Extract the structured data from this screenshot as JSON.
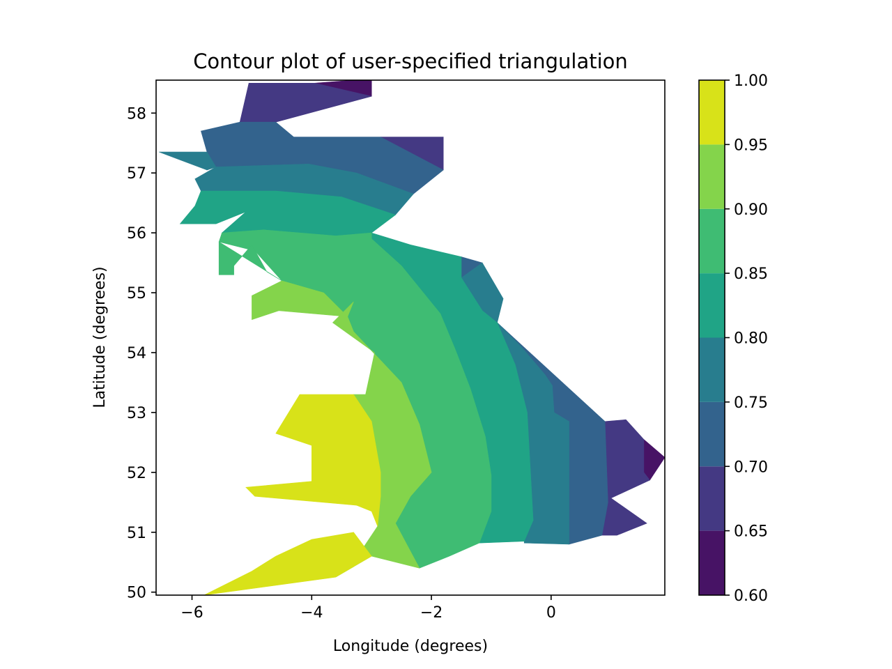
{
  "chart_data": {
    "type": "tricontourf",
    "title": "Contour plot of user-specified triangulation",
    "xlabel": "Longitude (degrees)",
    "ylabel": "Latitude (degrees)",
    "xlim": [
      -6.6,
      1.9
    ],
    "ylim": [
      49.95,
      58.55
    ],
    "x_ticks": [
      -6,
      -4,
      -2,
      0
    ],
    "x_tick_labels": [
      "−6",
      "−4",
      "−2",
      "0"
    ],
    "y_ticks": [
      50,
      51,
      52,
      53,
      54,
      55,
      56,
      57,
      58
    ],
    "y_tick_labels": [
      "50",
      "51",
      "52",
      "53",
      "54",
      "55",
      "56",
      "57",
      "58"
    ],
    "grid": false,
    "colorbar": {
      "levels": [
        0.6,
        0.65,
        0.7,
        0.75,
        0.8,
        0.85,
        0.9,
        0.95,
        1.0
      ],
      "tick_labels": [
        "0.60",
        "0.65",
        "0.70",
        "0.75",
        "0.80",
        "0.85",
        "0.90",
        "0.95",
        "1.00"
      ],
      "colors": [
        "#471365",
        "#443983",
        "#33638d",
        "#287d8e",
        "#20a486",
        "#3fbc73",
        "#84d44b",
        "#d8e219"
      ]
    },
    "bands": [
      {
        "level": [
          0.6,
          0.65
        ],
        "color": "#471365",
        "polygons": [
          [
            [
              -3.0,
              58.55
            ],
            [
              -3.0,
              58.28
            ],
            [
              -3.95,
              58.5
            ],
            [
              -3.3,
              58.55
            ]
          ],
          [
            [
              1.55,
              52.55
            ],
            [
              1.9,
              52.25
            ],
            [
              1.65,
              51.87
            ],
            [
              1.55,
              52.0
            ]
          ]
        ]
      },
      {
        "level": [
          0.65,
          0.7
        ],
        "color": "#443983",
        "polygons": [
          [
            [
              -5.05,
              58.5
            ],
            [
              -3.95,
              58.5
            ],
            [
              -3.0,
              58.28
            ],
            [
              -4.6,
              57.85
            ],
            [
              -5.05,
              57.85
            ],
            [
              -5.2,
              57.85
            ]
          ],
          [
            [
              -2.85,
              57.6
            ],
            [
              -1.8,
              57.6
            ],
            [
              -1.8,
              57.05
            ]
          ],
          [
            [
              0.9,
              52.85
            ],
            [
              1.25,
              52.88
            ],
            [
              1.55,
              52.55
            ],
            [
              1.55,
              52.0
            ],
            [
              1.65,
              51.87
            ],
            [
              1.0,
              51.57
            ],
            [
              1.6,
              51.15
            ],
            [
              1.1,
              50.95
            ],
            [
              0.85,
              50.95
            ],
            [
              0.95,
              51.5
            ]
          ]
        ]
      },
      {
        "level": [
          0.7,
          0.75
        ],
        "color": "#33638d",
        "polygons": [
          [
            [
              -5.85,
              57.7
            ],
            [
              -5.2,
              57.85
            ],
            [
              -4.6,
              57.85
            ],
            [
              -4.3,
              57.6
            ],
            [
              -2.85,
              57.6
            ],
            [
              -1.8,
              57.05
            ],
            [
              -2.3,
              56.65
            ],
            [
              -3.25,
              57.0
            ],
            [
              -4.05,
              57.15
            ],
            [
              -5.6,
              57.1
            ],
            [
              -5.75,
              57.05
            ],
            [
              -5.75,
              57.35
            ]
          ],
          [
            [
              -1.5,
              55.6
            ],
            [
              -1.15,
              55.5
            ],
            [
              -1.5,
              55.25
            ]
          ],
          [
            [
              -0.9,
              54.5
            ],
            [
              -0.5,
              54.1
            ],
            [
              -0.1,
              53.63
            ],
            [
              0.02,
              53.45
            ],
            [
              0.05,
              53.0
            ],
            [
              0.3,
              52.85
            ],
            [
              0.3,
              50.8
            ],
            [
              0.85,
              50.95
            ],
            [
              0.95,
              51.5
            ],
            [
              0.9,
              52.85
            ]
          ]
        ]
      },
      {
        "level": [
          0.75,
          0.8
        ],
        "color": "#287d8e",
        "polygons": [
          [
            [
              -6.55,
              57.35
            ],
            [
              -5.75,
              57.05
            ],
            [
              -5.6,
              57.1
            ],
            [
              -5.75,
              57.35
            ]
          ],
          [
            [
              -5.6,
              57.1
            ],
            [
              -4.05,
              57.15
            ],
            [
              -3.25,
              57.0
            ],
            [
              -2.3,
              56.65
            ],
            [
              -2.6,
              56.3
            ],
            [
              -2.9,
              56.4
            ],
            [
              -3.5,
              56.6
            ],
            [
              -4.6,
              56.7
            ],
            [
              -5.85,
              56.7
            ],
            [
              -5.95,
              56.9
            ]
          ],
          [
            [
              -1.5,
              55.25
            ],
            [
              -1.15,
              55.5
            ],
            [
              -0.8,
              54.9
            ],
            [
              -0.9,
              54.5
            ],
            [
              -1.15,
              54.7
            ]
          ],
          [
            [
              -0.5,
              54.1
            ],
            [
              -0.9,
              54.5
            ],
            [
              -0.6,
              53.8
            ],
            [
              -0.4,
              53.0
            ],
            [
              -0.3,
              51.2
            ],
            [
              -0.45,
              50.85
            ],
            [
              -0.45,
              50.82
            ],
            [
              0.3,
              50.8
            ],
            [
              0.3,
              52.85
            ],
            [
              0.05,
              53.0
            ],
            [
              0.02,
              53.45
            ],
            [
              -0.1,
              53.63
            ]
          ]
        ]
      },
      {
        "level": [
          0.8,
          0.85
        ],
        "color": "#20a486",
        "polygons": [
          [
            [
              -5.85,
              56.7
            ],
            [
              -4.6,
              56.7
            ],
            [
              -3.5,
              56.6
            ],
            [
              -2.9,
              56.4
            ],
            [
              -2.6,
              56.3
            ],
            [
              -3.0,
              56.0
            ],
            [
              -3.6,
              55.95
            ],
            [
              -4.8,
              56.05
            ],
            [
              -5.5,
              56.0
            ],
            [
              -5.1,
              56.35
            ],
            [
              -5.6,
              56.15
            ],
            [
              -6.2,
              56.15
            ],
            [
              -5.95,
              56.45
            ]
          ],
          [
            [
              -3.0,
              56.0
            ],
            [
              -2.35,
              55.8
            ],
            [
              -1.5,
              55.6
            ],
            [
              -1.5,
              55.25
            ],
            [
              -1.15,
              54.7
            ],
            [
              -0.9,
              54.5
            ],
            [
              -0.6,
              53.8
            ],
            [
              -0.4,
              53.0
            ],
            [
              -0.3,
              51.2
            ],
            [
              -0.45,
              50.85
            ],
            [
              -1.2,
              50.82
            ],
            [
              -1.0,
              51.35
            ],
            [
              -1.0,
              51.95
            ],
            [
              -1.1,
              52.6
            ],
            [
              -1.35,
              53.4
            ],
            [
              -1.6,
              54.05
            ],
            [
              -1.85,
              54.65
            ],
            [
              -2.5,
              55.45
            ],
            [
              -3.0,
              55.9
            ]
          ]
        ]
      },
      {
        "level": [
          0.85,
          0.9
        ],
        "color": "#3fbc73",
        "polygons": [
          [
            [
              -5.55,
              55.85
            ],
            [
              -5.5,
              56.0
            ],
            [
              -4.8,
              56.05
            ],
            [
              -3.6,
              55.95
            ],
            [
              -3.0,
              56.0
            ],
            [
              -3.0,
              55.9
            ],
            [
              -2.5,
              55.45
            ],
            [
              -1.85,
              54.65
            ],
            [
              -1.6,
              54.05
            ],
            [
              -1.35,
              53.4
            ],
            [
              -1.1,
              52.6
            ],
            [
              -1.0,
              51.95
            ],
            [
              -1.0,
              51.35
            ],
            [
              -1.2,
              50.82
            ],
            [
              -1.7,
              50.6
            ],
            [
              -2.2,
              50.4
            ],
            [
              -2.6,
              51.15
            ],
            [
              -2.35,
              51.6
            ],
            [
              -2.0,
              52.0
            ],
            [
              -2.2,
              52.8
            ],
            [
              -2.5,
              53.5
            ],
            [
              -3.3,
              54.35
            ],
            [
              -3.4,
              54.6
            ],
            [
              -3.8,
              55.0
            ],
            [
              -4.5,
              55.2
            ],
            [
              -4.95,
              55.7
            ],
            [
              -5.55,
              55.85
            ]
          ],
          [
            [
              -5.55,
              55.85
            ],
            [
              -5.55,
              55.3
            ],
            [
              -5.3,
              55.3
            ],
            [
              -5.3,
              55.45
            ],
            [
              -5.0,
              55.8
            ],
            [
              -4.75,
              55.35
            ],
            [
              -4.5,
              55.2
            ],
            [
              -5.55,
              55.85
            ]
          ]
        ]
      },
      {
        "level": [
          0.9,
          0.95
        ],
        "color": "#84d44b",
        "polygons": [
          [
            [
              -5.0,
              54.95
            ],
            [
              -4.5,
              55.2
            ],
            [
              -3.8,
              55.0
            ],
            [
              -3.4,
              54.6
            ],
            [
              -4.55,
              54.7
            ],
            [
              -5.0,
              54.55
            ]
          ],
          [
            [
              -3.4,
              54.6
            ],
            [
              -3.3,
              54.35
            ],
            [
              -2.5,
              53.5
            ],
            [
              -2.2,
              52.8
            ],
            [
              -2.0,
              52.0
            ],
            [
              -2.35,
              51.6
            ],
            [
              -2.6,
              51.15
            ],
            [
              -2.2,
              50.4
            ],
            [
              -3.0,
              50.6
            ],
            [
              -3.6,
              50.25
            ],
            [
              -3.3,
              50.5
            ],
            [
              -2.9,
              51.1
            ],
            [
              -2.85,
              51.6
            ],
            [
              -2.85,
              52.0
            ],
            [
              -3.0,
              52.85
            ],
            [
              -3.3,
              53.3
            ],
            [
              -3.1,
              53.3
            ],
            [
              -2.95,
              54.0
            ],
            [
              -3.65,
              54.5
            ],
            [
              -3.3,
              54.85
            ]
          ]
        ]
      },
      {
        "level": [
          0.95,
          1.0
        ],
        "color": "#d8e219",
        "polygons": [
          [
            [
              -4.2,
              53.3
            ],
            [
              -3.3,
              53.3
            ],
            [
              -3.0,
              52.85
            ],
            [
              -2.85,
              52.0
            ],
            [
              -2.85,
              51.6
            ],
            [
              -2.9,
              51.1
            ],
            [
              -3.0,
              51.35
            ],
            [
              -3.25,
              51.45
            ],
            [
              -4.0,
              51.8
            ],
            [
              -4.0,
              52.45
            ],
            [
              -4.6,
              52.65
            ]
          ],
          [
            [
              -4.0,
              51.8
            ],
            [
              -3.25,
              51.45
            ],
            [
              -4.95,
              51.6
            ],
            [
              -5.1,
              51.75
            ],
            [
              -4.0,
              51.85
            ]
          ],
          [
            [
              -5.8,
              49.95
            ],
            [
              -3.6,
              50.25
            ],
            [
              -3.0,
              50.6
            ],
            [
              -3.3,
              51.0
            ],
            [
              -4.0,
              50.88
            ],
            [
              -4.6,
              50.6
            ],
            [
              -5.0,
              50.35
            ],
            [
              -5.8,
              49.95
            ]
          ]
        ]
      }
    ]
  }
}
